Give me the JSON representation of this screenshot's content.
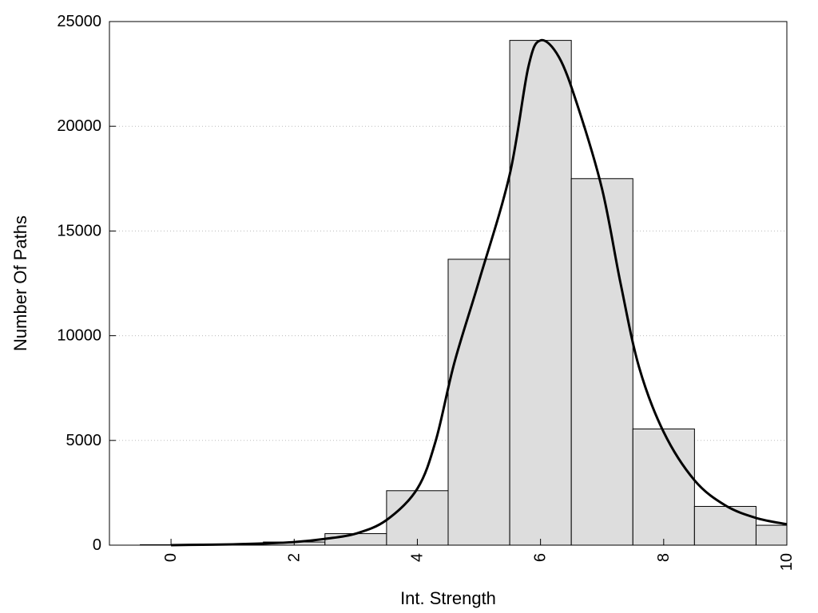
{
  "chart_data": {
    "type": "bar",
    "title": "",
    "xlabel": "Int. Strength",
    "ylabel": "Number Of Paths",
    "xlim": [
      -1,
      10
    ],
    "ylim": [
      0,
      25000
    ],
    "x_ticks": [
      0,
      2,
      4,
      6,
      8,
      10
    ],
    "y_ticks": [
      0,
      5000,
      10000,
      15000,
      20000,
      25000
    ],
    "grid": "horizontal-dotted",
    "bar_color": "#dddddd",
    "bar_edge_color": "#000000",
    "line_color": "#000000",
    "bars": [
      {
        "x": 0,
        "value": 20
      },
      {
        "x": 1,
        "value": 50
      },
      {
        "x": 2,
        "value": 150
      },
      {
        "x": 3,
        "value": 550
      },
      {
        "x": 4,
        "value": 2600
      },
      {
        "x": 5,
        "value": 13650
      },
      {
        "x": 6,
        "value": 24100
      },
      {
        "x": 7,
        "value": 17500
      },
      {
        "x": 8,
        "value": 5550
      },
      {
        "x": 9,
        "value": 1850
      },
      {
        "x": 10,
        "value": 950
      }
    ],
    "series": [
      {
        "type": "line",
        "x": [
          0,
          0.5,
          1,
          1.5,
          2,
          2.5,
          3,
          3.5,
          4,
          4.3,
          4.6,
          5,
          5.5,
          5.8,
          6,
          6.3,
          6.6,
          7,
          7.3,
          7.6,
          8,
          8.5,
          9,
          9.5,
          10
        ],
        "y": [
          0,
          20,
          40,
          80,
          150,
          300,
          550,
          1200,
          2700,
          5000,
          8700,
          12600,
          17700,
          22800,
          24100,
          23300,
          21000,
          17000,
          12500,
          8500,
          5400,
          3100,
          1900,
          1300,
          1000
        ]
      }
    ]
  }
}
